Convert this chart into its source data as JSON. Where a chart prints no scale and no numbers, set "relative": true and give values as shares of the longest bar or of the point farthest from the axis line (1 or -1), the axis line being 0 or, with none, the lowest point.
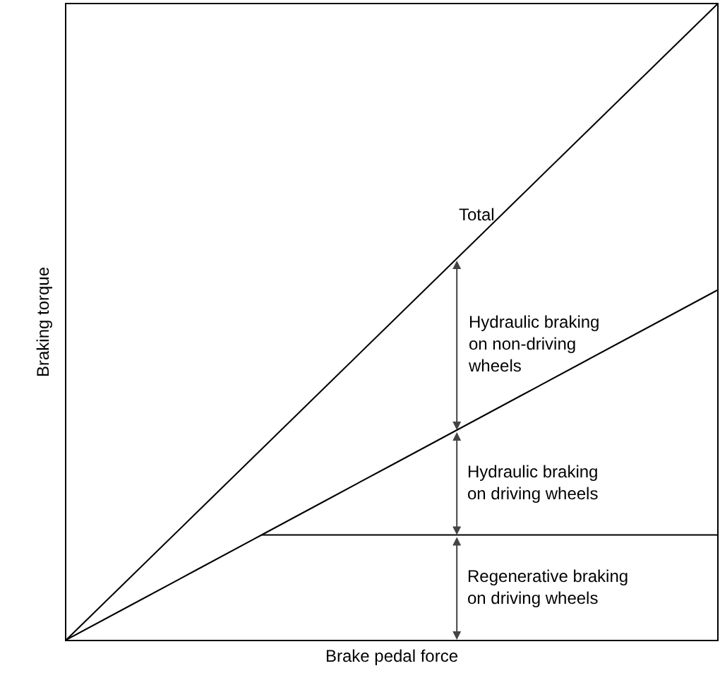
{
  "chart_data": {
    "type": "line",
    "relative": true,
    "xlabel": "Brake pedal force",
    "ylabel": "Braking torque",
    "categories": [
      null,
      null,
      null,
      null,
      null,
      null,
      null,
      null,
      null,
      null,
      null
    ],
    "series": [
      {
        "color": "#000000",
        "values": [
          0,
          0.1,
          0.2,
          0.3,
          0.4,
          0.5,
          0.6,
          0.7,
          0.8,
          0.9,
          1
        ]
      },
      {
        "color": "#000000",
        "values": [
          0,
          0.055,
          0.11,
          0.165,
          0.22,
          0.275,
          0.33,
          0.385,
          0.44,
          0.495,
          0.55
        ]
      },
      {
        "color": "#000000",
        "values": [
          null,
          null,
          null,
          0.165,
          0.165,
          0.165,
          0.165,
          0.165,
          0.165,
          0.165,
          0.165
        ]
      }
    ],
    "annotations": [
      "Total",
      "Hydraulic braking\non non-driving\nwheels",
      "Hydraulic braking\non driving wheels",
      "Regenerative braking\non driving wheels"
    ],
    "grid": false,
    "marker": "none",
    "line_style": "solid"
  }
}
